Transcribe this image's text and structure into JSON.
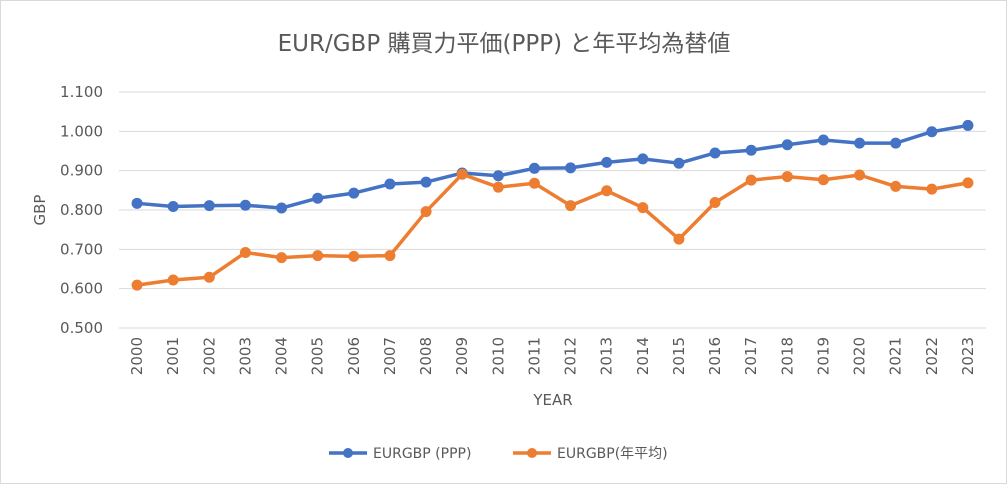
{
  "chart_data": {
    "type": "line",
    "title": "EUR/GBP 購買力平価(PPP) と年平均為替値",
    "xlabel": "YEAR",
    "ylabel": "GBP",
    "ylim": [
      0.5,
      1.1
    ],
    "y_ticks": [
      "0.500",
      "0.600",
      "0.700",
      "0.800",
      "0.900",
      "1.000",
      "1.100"
    ],
    "grid": true,
    "legend_position": "bottom",
    "categories": [
      "2000",
      "2001",
      "2002",
      "2003",
      "2004",
      "2005",
      "2006",
      "2007",
      "2008",
      "2009",
      "2010",
      "2011",
      "2012",
      "2013",
      "2014",
      "2015",
      "2016",
      "2017",
      "2018",
      "2019",
      "2020",
      "2021",
      "2022",
      "2023"
    ],
    "series": [
      {
        "name": "EURGBP (PPP)",
        "color": "#4472c4",
        "values": [
          0.817,
          0.809,
          0.811,
          0.812,
          0.805,
          0.83,
          0.843,
          0.866,
          0.871,
          0.894,
          0.887,
          0.906,
          0.907,
          0.921,
          0.93,
          0.919,
          0.945,
          0.952,
          0.966,
          0.978,
          0.97,
          0.97,
          0.999,
          1.015
        ]
      },
      {
        "name": "EURGBP(年平均)",
        "color": "#ed7d31",
        "values": [
          0.609,
          0.622,
          0.629,
          0.692,
          0.679,
          0.684,
          0.682,
          0.684,
          0.796,
          0.891,
          0.858,
          0.868,
          0.811,
          0.849,
          0.806,
          0.726,
          0.819,
          0.876,
          0.885,
          0.877,
          0.889,
          0.86,
          0.853,
          0.869
        ]
      }
    ]
  }
}
